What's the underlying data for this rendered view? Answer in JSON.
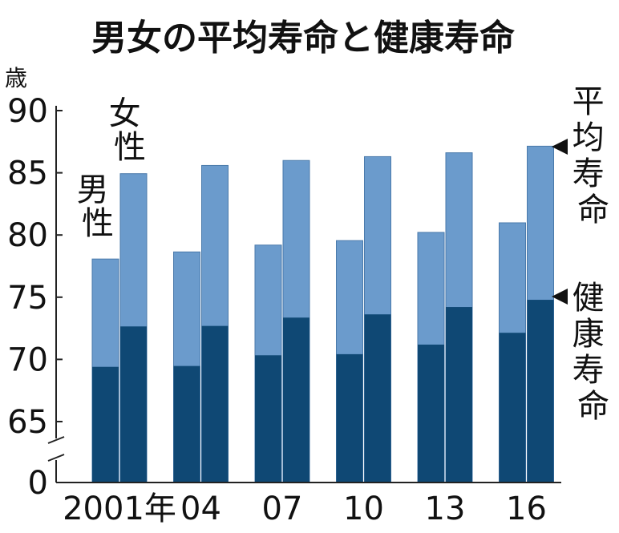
{
  "chart_data": {
    "type": "bar",
    "title": "男女の平均寿命と健康寿命",
    "ylabel": "歳",
    "ylim": [
      0,
      90
    ],
    "axis_break": "0 → 65",
    "yticks": [
      "90",
      "85",
      "80",
      "75",
      "70",
      "65",
      "0"
    ],
    "categories": [
      "2001年",
      "04",
      "07",
      "10",
      "13",
      "16"
    ],
    "series_labels": {
      "male": "男性",
      "female": "女性"
    },
    "legend": {
      "lifespan": "平均寿命",
      "healthy": "健康寿命"
    },
    "series": [
      {
        "name": "男性 平均寿命",
        "values": [
          78.07,
          78.64,
          79.19,
          79.55,
          80.21,
          80.98
        ]
      },
      {
        "name": "男性 健康寿命",
        "values": [
          69.4,
          69.47,
          70.33,
          70.42,
          71.19,
          72.14
        ]
      },
      {
        "name": "女性 平均寿命",
        "values": [
          84.93,
          85.59,
          85.99,
          86.3,
          86.61,
          87.14
        ]
      },
      {
        "name": "女性 健康寿命",
        "values": [
          72.65,
          72.69,
          73.36,
          73.62,
          74.21,
          74.79
        ]
      }
    ],
    "colors": {
      "lifespan": "#6b9bcc",
      "healthy": "#0f4874",
      "axis": "#222222",
      "text": "#111111"
    }
  }
}
